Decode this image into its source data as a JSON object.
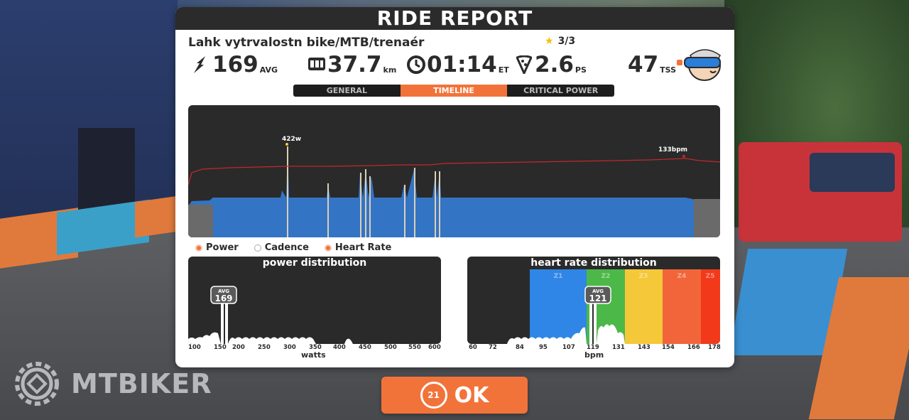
{
  "header": {
    "title": "RIDE REPORT"
  },
  "route": {
    "name": "Lahk vytrvalostn bike/MTB/trenaér",
    "rating": "3/3"
  },
  "stats": [
    {
      "name": "avg-power",
      "icon": "bolt-icon",
      "value": "169",
      "unit": "AVG"
    },
    {
      "name": "distance",
      "icon": "odometer-icon",
      "value": "37.7",
      "unit": "km"
    },
    {
      "name": "elapsed-time",
      "icon": "clock-icon",
      "value": "01:14",
      "unit": "ET"
    },
    {
      "name": "pizza-slices",
      "icon": "pizza-icon",
      "value": "2.6",
      "unit": "PS"
    },
    {
      "name": "tss",
      "icon": "",
      "value": "47",
      "unit": "TSS"
    }
  ],
  "tabs": [
    {
      "label": "GENERAL",
      "active": false
    },
    {
      "label": "TIMELINE",
      "active": true
    },
    {
      "label": "CRITICAL POWER",
      "active": false
    }
  ],
  "timeline": {
    "power_peak_label": "422w",
    "hr_peak_label": "133bpm"
  },
  "legend": {
    "power": "Power",
    "cadence": "Cadence",
    "heart_rate": "Heart Rate"
  },
  "power_distribution": {
    "title": "power distribution",
    "avg_label": "AVG",
    "avg_value": "169",
    "ticks": [
      "100",
      "150",
      "200",
      "250",
      "300",
      "350",
      "400",
      "450",
      "500",
      "550",
      "600"
    ],
    "xlabel": "watts"
  },
  "hr_distribution": {
    "title": "heart rate distribution",
    "zones": [
      "Z1",
      "Z2",
      "Z3",
      "Z4",
      "Z5"
    ],
    "zone_colors": [
      "#2f86e6",
      "#4cb848",
      "#f5c83a",
      "#f2653a",
      "#f23a1a"
    ],
    "avg_label": "AVG",
    "avg_value": "121",
    "ticks": [
      "60",
      "72",
      "84",
      "95",
      "107",
      "119",
      "131",
      "143",
      "154",
      "166",
      "178"
    ],
    "xlabel": "bpm"
  },
  "colors": {
    "accent": "#f2733a",
    "power_fill": "#3474c4",
    "hr_line": "#c0282e"
  },
  "ok_button": {
    "badge": "21",
    "label": "OK"
  },
  "watermark": {
    "text": "MTBIKER"
  }
}
